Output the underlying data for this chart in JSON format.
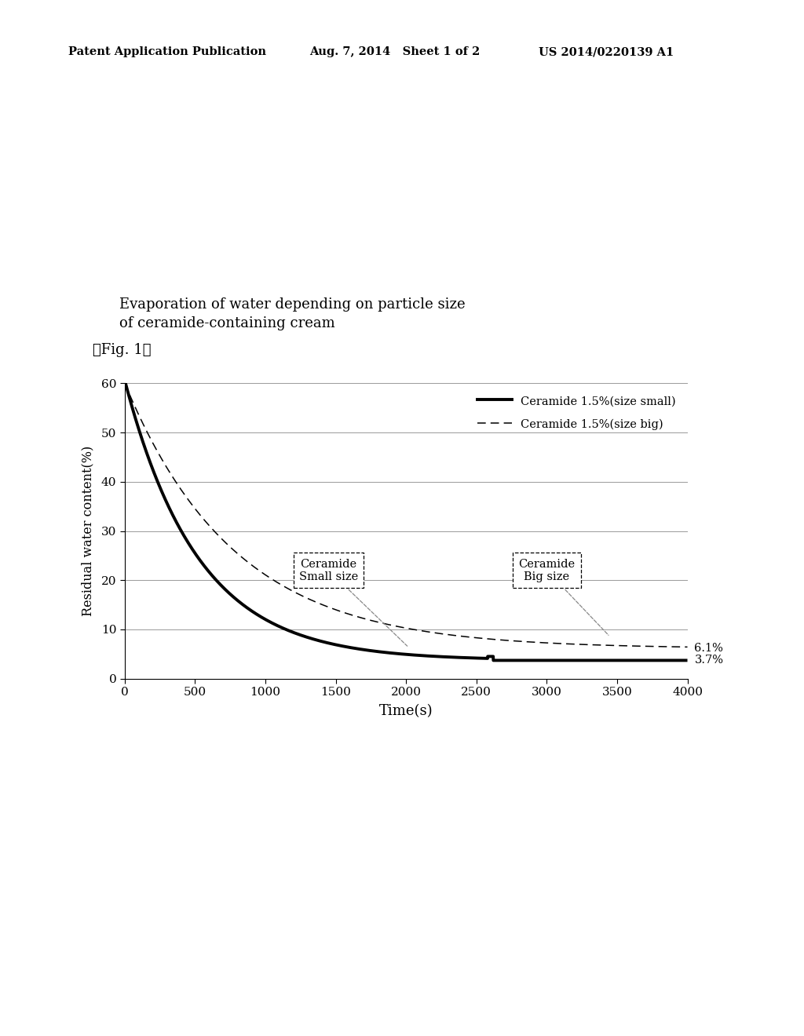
{
  "title_line1": "Evaporation of water depending on particle size",
  "title_line2": "of ceramide-containing cream",
  "xlabel": "Time(s)",
  "ylabel": "Residual water content(%)",
  "fig_label": "『Fig. 1』",
  "header_left": "Patent Application Publication",
  "header_mid": "Aug. 7, 2014   Sheet 1 of 2",
  "header_right": "US 2014/0220139 A1",
  "xlim": [
    0,
    4000
  ],
  "ylim": [
    0,
    60
  ],
  "xticks": [
    0,
    500,
    1000,
    1500,
    2000,
    2500,
    3000,
    3500,
    4000
  ],
  "yticks": [
    0,
    10,
    20,
    30,
    40,
    50,
    60
  ],
  "legend_solid": "Ceramide 1.5%(size small)",
  "legend_dash": "Ceramide 1.5%(size big)",
  "label_solid": "3.7%",
  "label_dash": "6.1%",
  "annotation_small": "Ceramide\nSmall size",
  "annotation_big": "Ceramide\nBig size",
  "bg_color": "#ffffff",
  "line_color": "#000000",
  "grid_color": "#999999"
}
